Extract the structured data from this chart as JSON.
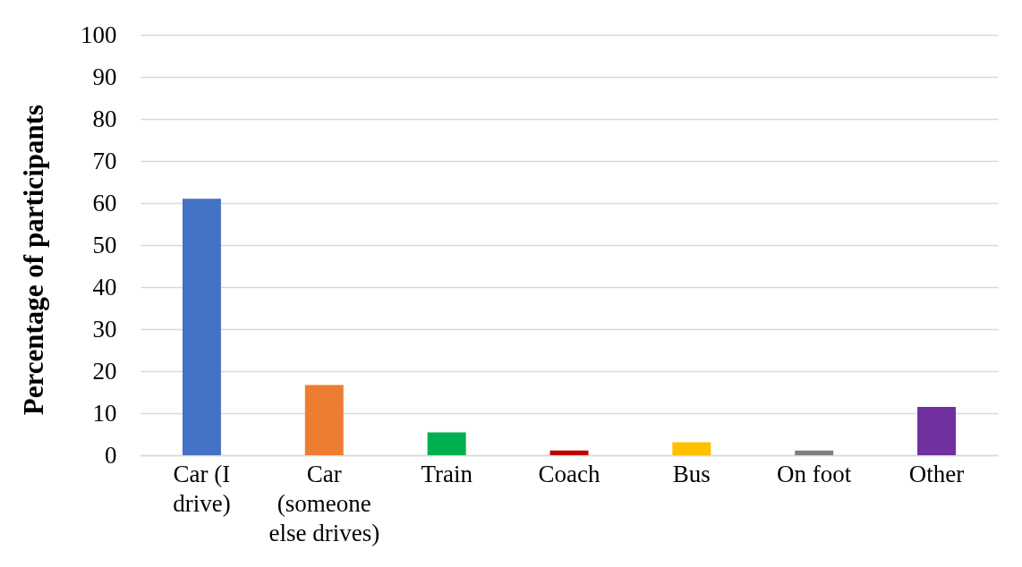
{
  "chart_data": {
    "type": "bar",
    "ylabel": "Percentage of participants",
    "categories": [
      "Car (I drive)",
      "Car (someone else drives)",
      "Train",
      "Coach",
      "Bus",
      "On foot",
      "Other"
    ],
    "values": [
      61,
      16.7,
      5.4,
      1.1,
      3.1,
      1.1,
      11.5
    ],
    "colors": [
      "#4472c4",
      "#ed7d31",
      "#00b050",
      "#c00000",
      "#ffc000",
      "#7f7f7f",
      "#7030a0"
    ],
    "ylim": [
      0,
      100
    ],
    "yticks": [
      0,
      10,
      20,
      30,
      40,
      50,
      60,
      70,
      80,
      90,
      100
    ],
    "grid": "y"
  }
}
